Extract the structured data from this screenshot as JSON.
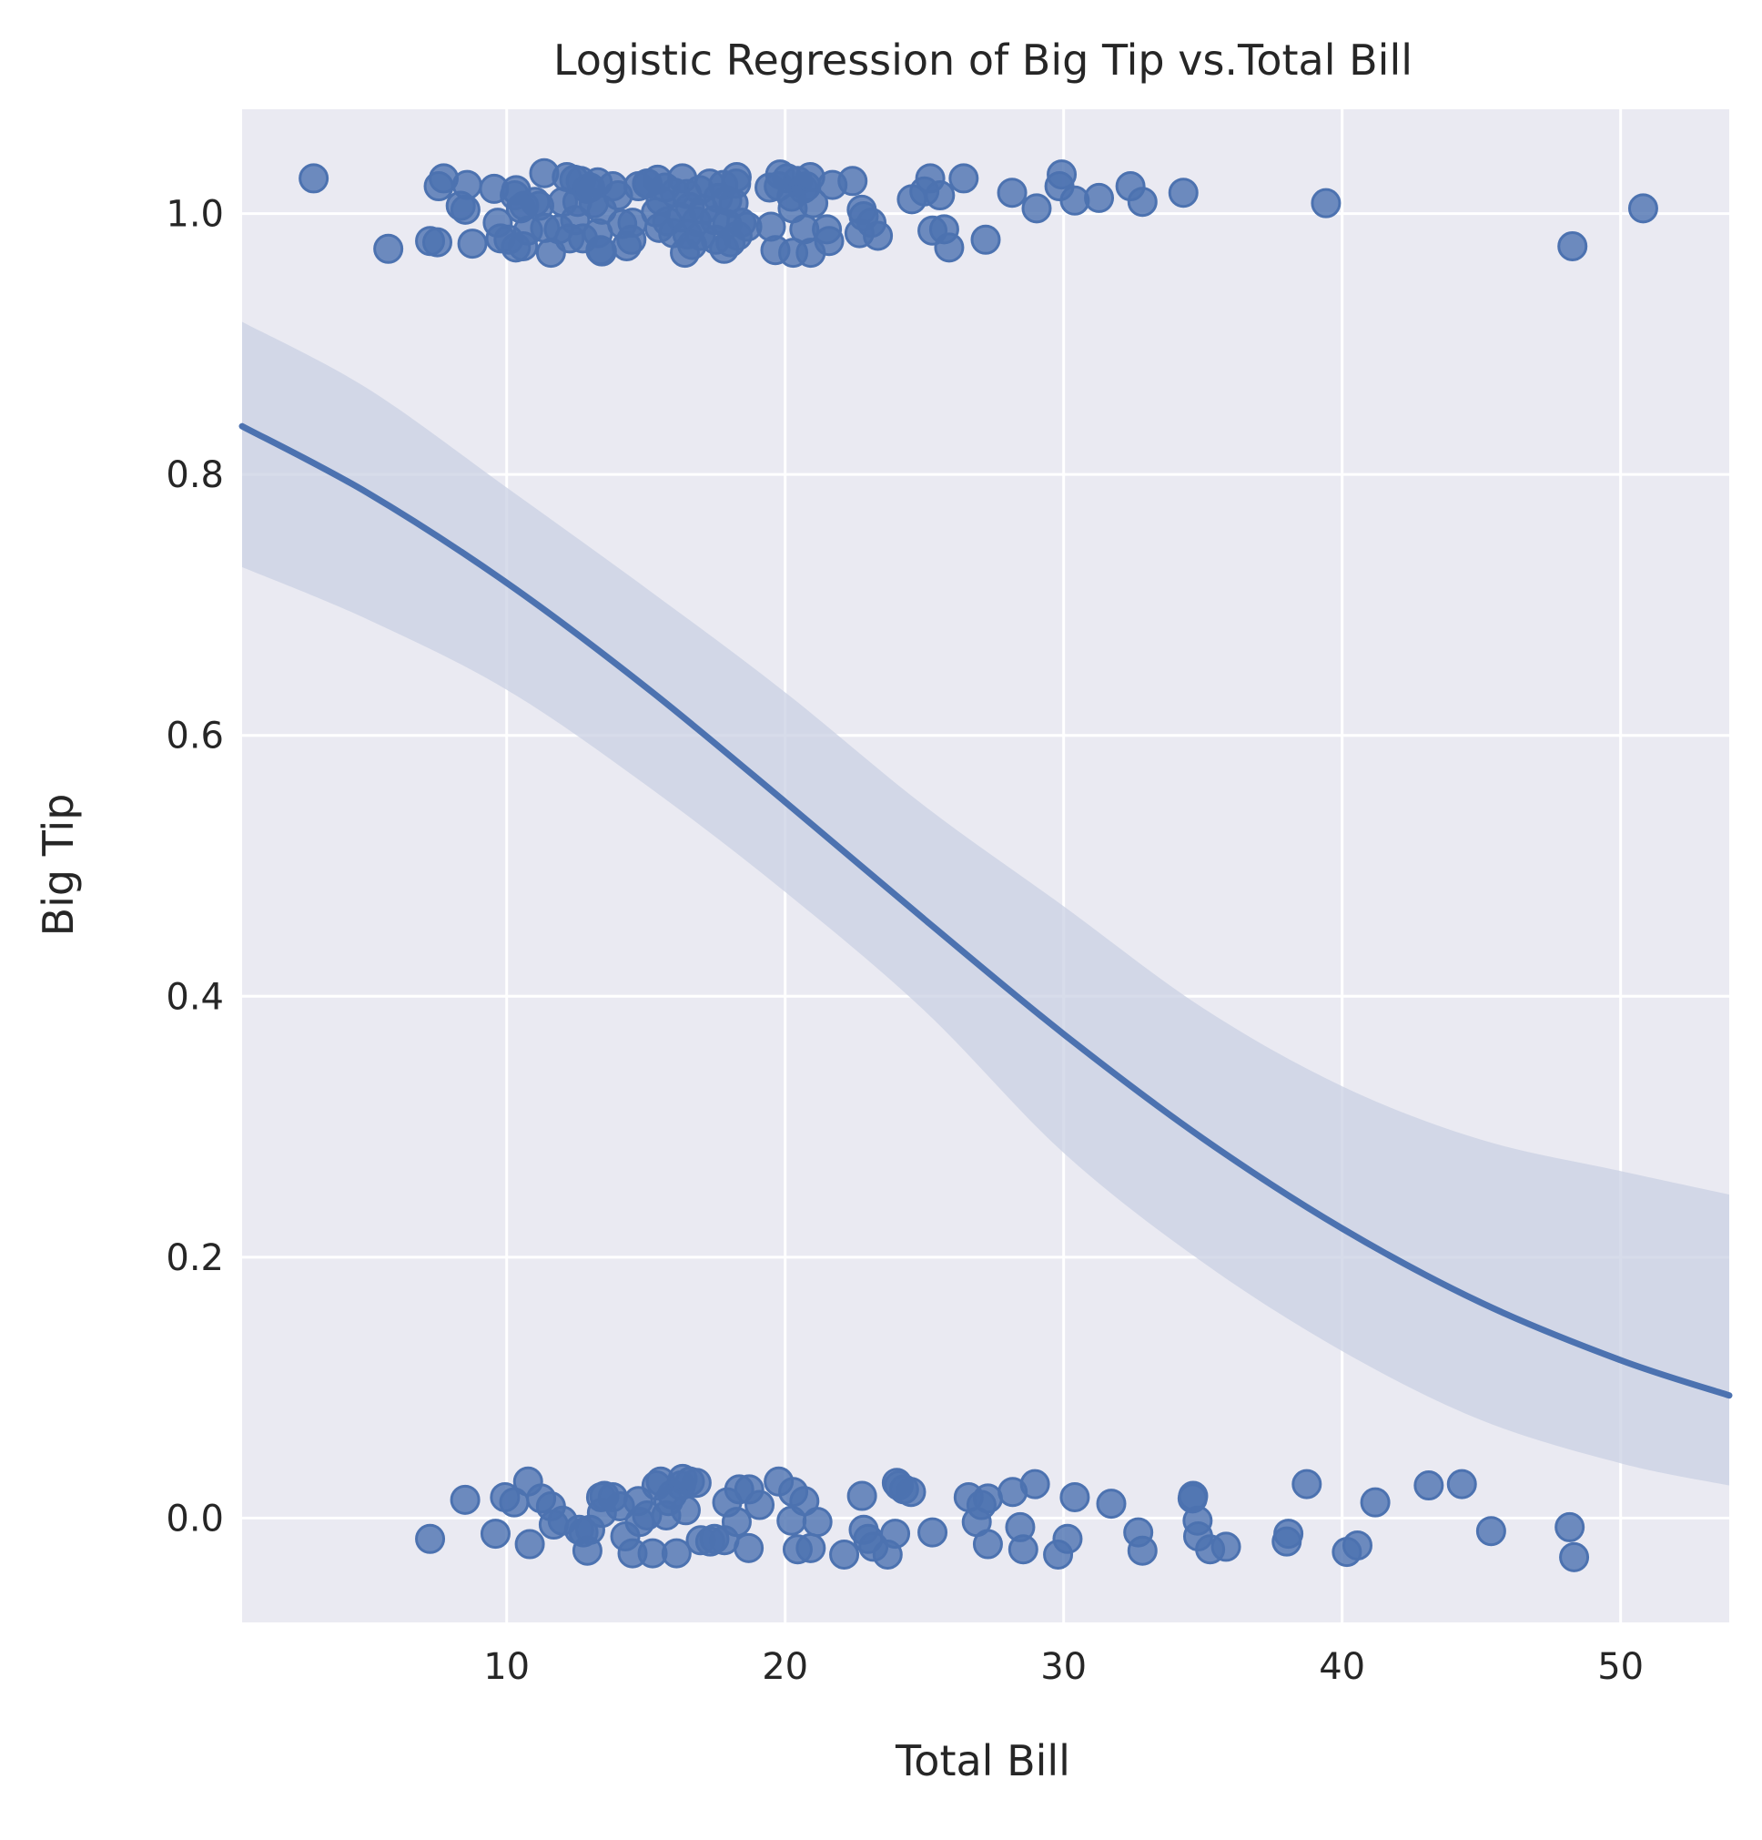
{
  "chart_data": {
    "type": "scatter",
    "title": "Logistic Regression of Big Tip vs.Total Bill",
    "xlabel": "Total Bill",
    "ylabel": "Big Tip",
    "xlim": [
      0.5,
      53.9
    ],
    "ylim": [
      -0.08,
      1.08
    ],
    "xticks": [
      10,
      20,
      30,
      40,
      50
    ],
    "xtick_labels": [
      "10",
      "20",
      "30",
      "40",
      "50"
    ],
    "yticks": [
      0.0,
      0.2,
      0.4,
      0.6,
      0.8,
      1.0
    ],
    "ytick_labels": [
      "0.0",
      "0.2",
      "0.4",
      "0.6",
      "0.8",
      "1.0"
    ],
    "grid": true,
    "legend": "none",
    "colors": {
      "points": "#4c72b0",
      "line": "#4c72b0",
      "band": "#c9d0e3",
      "background": "#eaeaf2",
      "grid": "#ffffff"
    },
    "series": [
      {
        "type": "scatter",
        "points": [
          [
            3.07,
            1.027
          ],
          [
            5.75,
            0.973
          ],
          [
            7.25,
            0.979
          ],
          [
            7.51,
            0.978
          ],
          [
            7.56,
            1.021
          ],
          [
            7.74,
            1.027
          ],
          [
            8.35,
            1.006
          ],
          [
            8.52,
            1.003
          ],
          [
            8.58,
            1.022
          ],
          [
            8.77,
            0.977
          ],
          [
            9.55,
            1.019
          ],
          [
            9.68,
            0.993
          ],
          [
            9.78,
            0.981
          ],
          [
            10.07,
            0.98
          ],
          [
            10.29,
            1.014
          ],
          [
            10.34,
            1.018
          ],
          [
            10.33,
            0.974
          ],
          [
            10.51,
            1.004
          ],
          [
            10.59,
            0.975
          ],
          [
            10.63,
            1.006
          ],
          [
            10.77,
            0.987
          ],
          [
            11.02,
            1.009
          ],
          [
            11.17,
            1.006
          ],
          [
            11.35,
            1.031
          ],
          [
            11.38,
            0.989
          ],
          [
            11.59,
            0.97
          ],
          [
            11.87,
            0.988
          ],
          [
            12.02,
            1.009
          ],
          [
            12.16,
            1.028
          ],
          [
            12.26,
            0.981
          ],
          [
            12.43,
            1.026
          ],
          [
            12.46,
            0.995
          ],
          [
            12.54,
            1.009
          ],
          [
            12.66,
            1.025
          ],
          [
            12.74,
            0.981
          ],
          [
            12.9,
            1.019
          ],
          [
            13.0,
            1.02
          ],
          [
            13.13,
            1.008
          ],
          [
            13.27,
            1.024
          ],
          [
            13.28,
            0.985
          ],
          [
            13.37,
            0.972
          ],
          [
            13.42,
            1.003
          ],
          [
            13.42,
            0.971
          ],
          [
            13.81,
            1.021
          ],
          [
            14.0,
            1.014
          ],
          [
            14.15,
            0.992
          ],
          [
            14.31,
            0.975
          ],
          [
            14.48,
            0.98
          ],
          [
            14.52,
            0.993
          ],
          [
            14.73,
            1.021
          ],
          [
            15.04,
            1.023
          ],
          [
            15.06,
            1.023
          ],
          [
            15.36,
            1.001
          ],
          [
            15.42,
            1.026
          ],
          [
            15.48,
            0.989
          ],
          [
            15.53,
            1.01
          ],
          [
            15.69,
            1.02
          ],
          [
            15.77,
            0.994
          ],
          [
            15.98,
            0.985
          ],
          [
            16.04,
            1.016
          ],
          [
            16.27,
            0.997
          ],
          [
            16.31,
            1.027
          ],
          [
            16.4,
            0.97
          ],
          [
            16.47,
            1.015
          ],
          [
            16.49,
            0.984
          ],
          [
            16.58,
            1.005
          ],
          [
            16.66,
            0.976
          ],
          [
            16.82,
            0.994
          ],
          [
            16.93,
            1.018
          ],
          [
            16.97,
            0.983
          ],
          [
            17.07,
            1.003
          ],
          [
            17.29,
            1.023
          ],
          [
            17.47,
            0.995
          ],
          [
            17.51,
            0.98
          ],
          [
            17.59,
            1.012
          ],
          [
            17.78,
            1.022
          ],
          [
            17.81,
            0.973
          ],
          [
            17.92,
            0.992
          ],
          [
            17.92,
            1.01
          ],
          [
            18.04,
            0.978
          ],
          [
            18.15,
            1.008
          ],
          [
            18.24,
            1.023
          ],
          [
            18.26,
            1.028
          ],
          [
            18.29,
            0.983
          ],
          [
            18.43,
            0.993
          ],
          [
            18.64,
            0.99
          ],
          [
            19.44,
            1.02
          ],
          [
            19.49,
            0.99
          ],
          [
            19.65,
            0.972
          ],
          [
            19.77,
            1.021
          ],
          [
            19.82,
            1.03
          ],
          [
            20.08,
            1.027
          ],
          [
            20.23,
            1.013
          ],
          [
            20.27,
            1.004
          ],
          [
            20.29,
            0.97
          ],
          [
            20.45,
            1.025
          ],
          [
            20.65,
            1.019
          ],
          [
            20.69,
            0.988
          ],
          [
            20.76,
            1.021
          ],
          [
            20.9,
            1.028
          ],
          [
            20.92,
            0.97
          ],
          [
            21.01,
            1.008
          ],
          [
            21.5,
            0.988
          ],
          [
            21.58,
            0.979
          ],
          [
            21.7,
            1.022
          ],
          [
            22.42,
            1.025
          ],
          [
            22.67,
            0.985
          ],
          [
            22.75,
            1.003
          ],
          [
            22.82,
            0.998
          ],
          [
            23.1,
            0.993
          ],
          [
            23.33,
            0.983
          ],
          [
            24.55,
            1.011
          ],
          [
            25.0,
            1.017
          ],
          [
            25.21,
            1.027
          ],
          [
            25.29,
            0.987
          ],
          [
            25.56,
            1.014
          ],
          [
            25.71,
            0.988
          ],
          [
            25.89,
            0.974
          ],
          [
            26.41,
            1.027
          ],
          [
            27.2,
            0.98
          ],
          [
            28.15,
            1.016
          ],
          [
            29.03,
            1.004
          ],
          [
            29.85,
            1.021
          ],
          [
            29.93,
            1.03
          ],
          [
            30.4,
            1.01
          ],
          [
            31.27,
            1.012
          ],
          [
            32.4,
            1.021
          ],
          [
            32.83,
            1.009
          ],
          [
            34.3,
            1.016
          ],
          [
            39.42,
            1.008
          ],
          [
            48.27,
            0.975
          ],
          [
            50.81,
            1.004
          ],
          [
            7.25,
            -0.016
          ],
          [
            8.51,
            0.014
          ],
          [
            9.6,
            -0.012
          ],
          [
            9.94,
            0.016
          ],
          [
            10.27,
            0.012
          ],
          [
            10.77,
            0.028
          ],
          [
            10.83,
            -0.02
          ],
          [
            11.24,
            0.015
          ],
          [
            11.59,
            0.009
          ],
          [
            11.69,
            -0.005
          ],
          [
            12.01,
            -0.002
          ],
          [
            12.6,
            -0.009
          ],
          [
            12.76,
            -0.011
          ],
          [
            12.9,
            -0.025
          ],
          [
            13.0,
            -0.009
          ],
          [
            13.39,
            0.016
          ],
          [
            13.42,
            0.004
          ],
          [
            13.51,
            0.017
          ],
          [
            13.81,
            0.016
          ],
          [
            14.07,
            0.009
          ],
          [
            14.26,
            -0.014
          ],
          [
            14.52,
            -0.027
          ],
          [
            14.73,
            0.013
          ],
          [
            14.78,
            -0.003
          ],
          [
            15.04,
            0.002
          ],
          [
            15.24,
            -0.027
          ],
          [
            15.38,
            0.025
          ],
          [
            15.53,
            0.028
          ],
          [
            15.73,
            0.002
          ],
          [
            15.81,
            0.013
          ],
          [
            15.95,
            0.018
          ],
          [
            16.1,
            -0.027
          ],
          [
            16.26,
            0.025
          ],
          [
            16.32,
            0.03
          ],
          [
            16.43,
            0.006
          ],
          [
            16.58,
            0.028
          ],
          [
            16.82,
            0.027
          ],
          [
            16.97,
            -0.017
          ],
          [
            17.31,
            -0.018
          ],
          [
            17.46,
            -0.016
          ],
          [
            17.82,
            -0.017
          ],
          [
            17.92,
            0.012
          ],
          [
            18.26,
            -0.003
          ],
          [
            18.35,
            0.022
          ],
          [
            18.69,
            -0.023
          ],
          [
            18.71,
            0.022
          ],
          [
            19.08,
            0.01
          ],
          [
            19.77,
            0.028
          ],
          [
            20.23,
            -0.002
          ],
          [
            20.29,
            0.02
          ],
          [
            20.45,
            -0.024
          ],
          [
            20.69,
            0.013
          ],
          [
            20.92,
            -0.023
          ],
          [
            21.16,
            -0.003
          ],
          [
            22.12,
            -0.028
          ],
          [
            22.76,
            0.017
          ],
          [
            22.82,
            -0.009
          ],
          [
            22.98,
            -0.016
          ],
          [
            23.17,
            -0.022
          ],
          [
            23.68,
            -0.028
          ],
          [
            23.95,
            -0.012
          ],
          [
            24.01,
            0.027
          ],
          [
            24.08,
            0.025
          ],
          [
            24.27,
            0.022
          ],
          [
            24.52,
            0.02
          ],
          [
            25.29,
            -0.011
          ],
          [
            26.59,
            0.016
          ],
          [
            26.88,
            -0.003
          ],
          [
            27.05,
            0.01
          ],
          [
            27.28,
            -0.02
          ],
          [
            27.28,
            0.015
          ],
          [
            28.17,
            0.02
          ],
          [
            28.44,
            -0.007
          ],
          [
            28.55,
            -0.024
          ],
          [
            28.97,
            0.026
          ],
          [
            29.8,
            -0.028
          ],
          [
            30.14,
            -0.016
          ],
          [
            30.4,
            0.016
          ],
          [
            31.71,
            0.011
          ],
          [
            32.68,
            -0.011
          ],
          [
            32.83,
            -0.025
          ],
          [
            34.63,
            0.015
          ],
          [
            34.65,
            0.017
          ],
          [
            34.81,
            -0.002
          ],
          [
            34.83,
            -0.014
          ],
          [
            35.26,
            -0.024
          ],
          [
            35.83,
            -0.022
          ],
          [
            38.01,
            -0.018
          ],
          [
            38.07,
            -0.012
          ],
          [
            38.73,
            0.026
          ],
          [
            40.17,
            -0.026
          ],
          [
            40.55,
            -0.021
          ],
          [
            41.19,
            0.012
          ],
          [
            43.11,
            0.025
          ],
          [
            44.3,
            0.026
          ],
          [
            45.35,
            -0.01
          ],
          [
            48.17,
            -0.007
          ],
          [
            48.33,
            -0.03
          ]
        ]
      },
      {
        "type": "line",
        "name": "logistic fit",
        "x": [
          0.5,
          5,
          10,
          15,
          20,
          25,
          30,
          35,
          40,
          45,
          50,
          53.9
        ],
        "y": [
          0.837,
          0.786,
          0.717,
          0.637,
          0.549,
          0.459,
          0.371,
          0.291,
          0.222,
          0.165,
          0.121,
          0.094
        ]
      },
      {
        "type": "band",
        "name": "95% CI",
        "x": [
          0.5,
          5,
          10,
          15,
          20,
          25,
          30,
          35,
          40,
          45,
          50,
          53.9
        ],
        "y_lower": [
          0.729,
          0.689,
          0.635,
          0.562,
          0.48,
          0.389,
          0.28,
          0.196,
          0.128,
          0.075,
          0.042,
          0.025
        ],
        "y_upper": [
          0.917,
          0.866,
          0.79,
          0.713,
          0.633,
          0.546,
          0.469,
          0.391,
          0.331,
          0.29,
          0.266,
          0.248
        ]
      }
    ]
  }
}
